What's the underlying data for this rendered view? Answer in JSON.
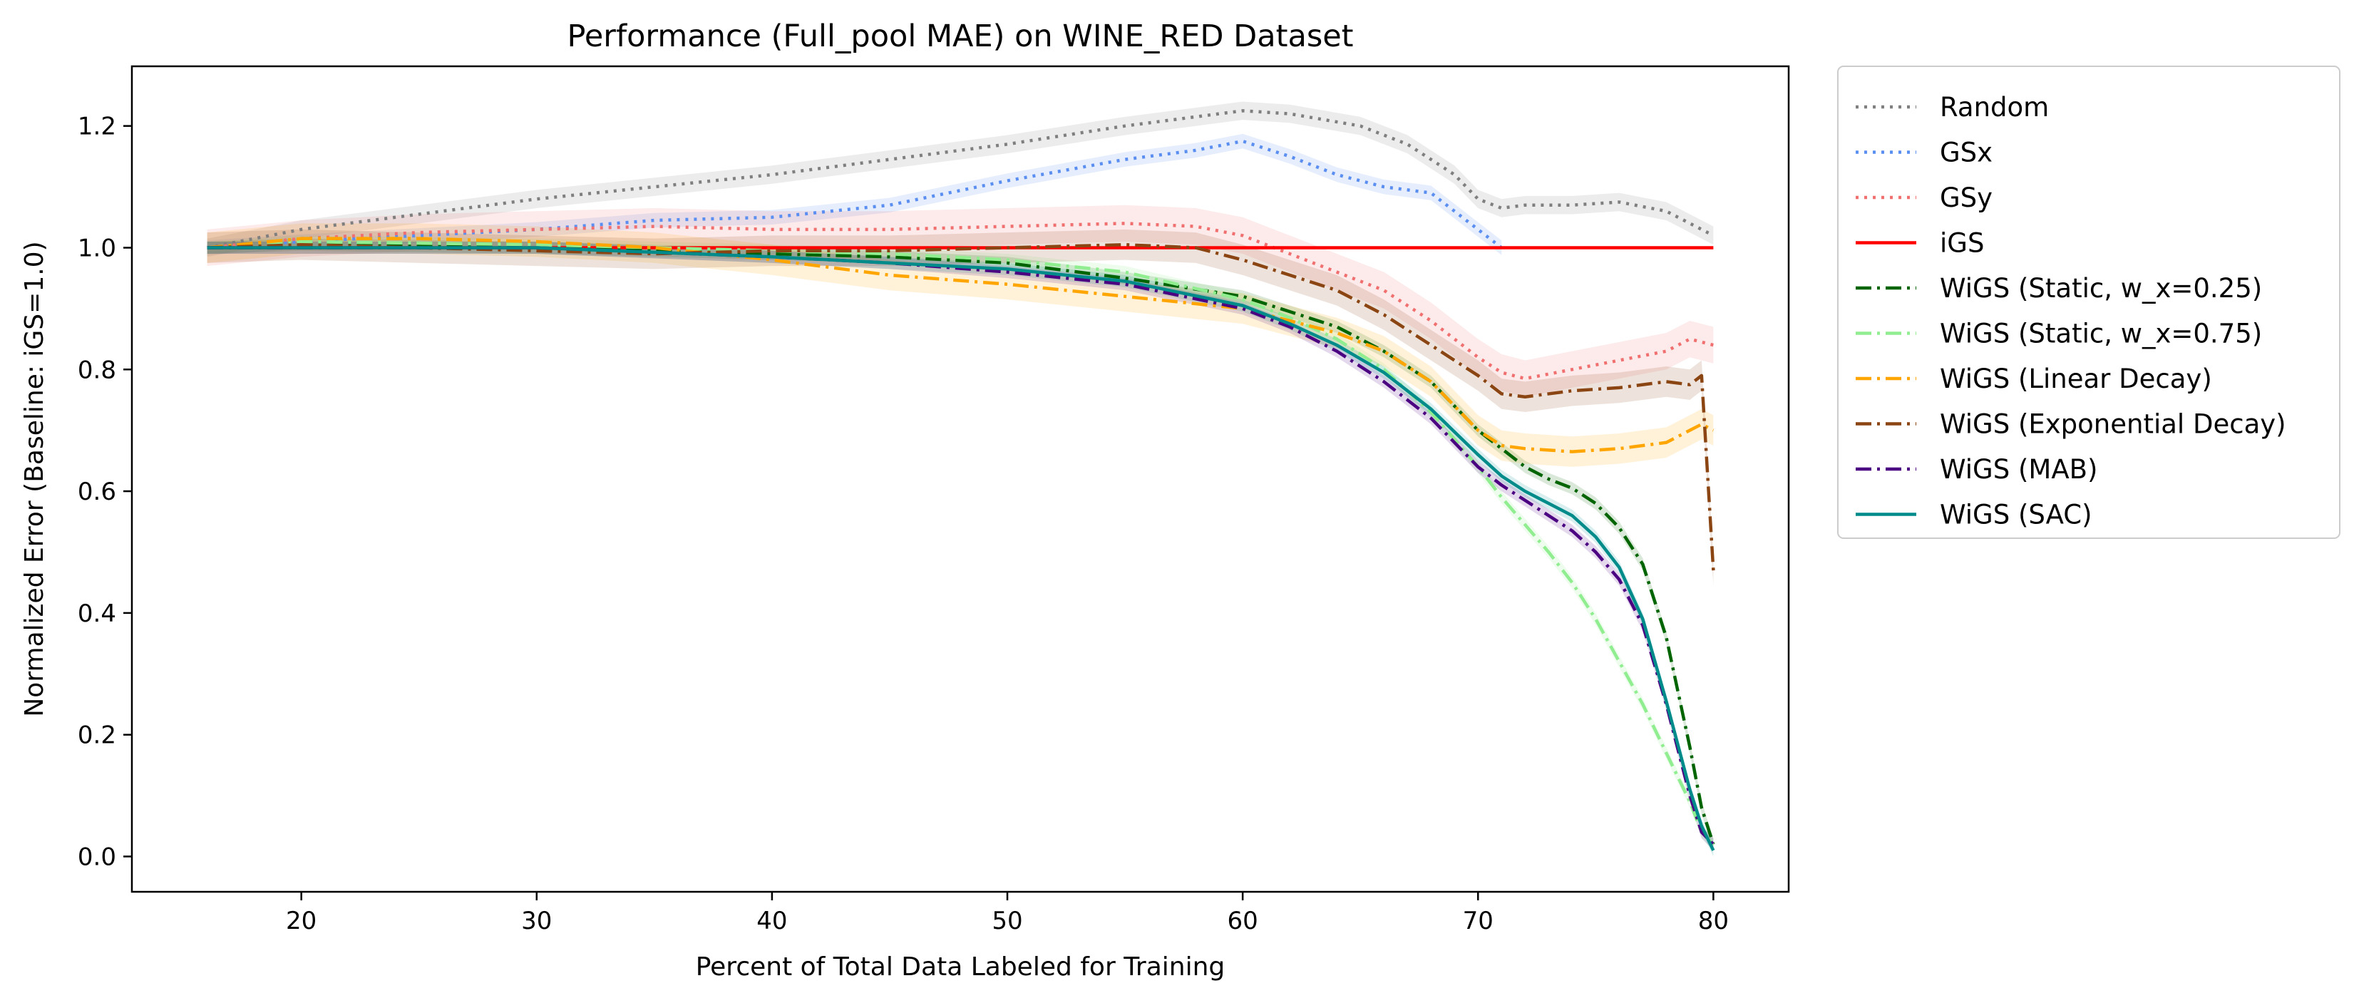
{
  "chart_data": {
    "type": "line",
    "title": "Performance (Full_pool MAE) on WINE_RED Dataset",
    "xlabel": "Percent of Total Data Labeled for Training",
    "ylabel": "Normalized Error (Baseline: iGS=1.0)",
    "xlim": [
      12.8,
      83.2
    ],
    "ylim": [
      -0.058,
      1.298
    ],
    "xticks": [
      20,
      30,
      40,
      50,
      60,
      70,
      80
    ],
    "yticks": [
      0.0,
      0.2,
      0.4,
      0.6,
      0.8,
      1.0,
      1.2
    ],
    "grid": false,
    "legend_position": "outside-right",
    "series": [
      {
        "name": "Random",
        "color": "#7f7f7f",
        "dash": "dotted",
        "x": [
          16,
          20,
          25,
          30,
          35,
          40,
          45,
          50,
          55,
          58,
          60,
          62,
          65,
          67,
          69,
          70,
          71,
          72,
          74,
          76,
          78,
          79,
          80
        ],
        "y": [
          1.0,
          1.03,
          1.055,
          1.08,
          1.1,
          1.12,
          1.145,
          1.17,
          1.2,
          1.215,
          1.225,
          1.22,
          1.2,
          1.17,
          1.12,
          1.08,
          1.065,
          1.07,
          1.07,
          1.075,
          1.06,
          1.04,
          1.02
        ],
        "band": 0.015
      },
      {
        "name": "GSx",
        "color": "#5a8ef0",
        "dash": "dotted",
        "x": [
          16,
          20,
          25,
          30,
          35,
          40,
          45,
          50,
          55,
          58,
          60,
          62,
          64,
          66,
          68,
          69,
          70,
          71
        ],
        "y": [
          1.0,
          1.01,
          1.02,
          1.03,
          1.045,
          1.05,
          1.07,
          1.11,
          1.145,
          1.16,
          1.175,
          1.15,
          1.12,
          1.1,
          1.09,
          1.06,
          1.03,
          1.0
        ],
        "band": 0.012
      },
      {
        "name": "GSy",
        "color": "#f07070",
        "dash": "dotted",
        "x": [
          16,
          20,
          25,
          30,
          35,
          40,
          45,
          50,
          55,
          58,
          60,
          62,
          64,
          66,
          68,
          70,
          71,
          72,
          74,
          76,
          78,
          79,
          80
        ],
        "y": [
          1.0,
          1.015,
          1.025,
          1.03,
          1.035,
          1.03,
          1.03,
          1.035,
          1.04,
          1.035,
          1.02,
          0.99,
          0.96,
          0.93,
          0.88,
          0.82,
          0.795,
          0.785,
          0.8,
          0.815,
          0.83,
          0.85,
          0.84
        ],
        "band": 0.03
      },
      {
        "name": "iGS",
        "color": "#ff0000",
        "dash": "solid",
        "x": [
          16,
          80
        ],
        "y": [
          1.0,
          1.0
        ],
        "band": 0.0
      },
      {
        "name": "WiGS (Static, w_x=0.25)",
        "color": "#006400",
        "dash": "dashdot",
        "x": [
          16,
          20,
          30,
          40,
          45,
          50,
          55,
          60,
          62,
          64,
          66,
          68,
          70,
          71,
          72,
          73,
          74,
          75,
          76,
          77,
          78,
          79,
          79.5,
          80
        ],
        "y": [
          1.0,
          1.005,
          1.0,
          0.99,
          0.985,
          0.975,
          0.95,
          0.92,
          0.895,
          0.87,
          0.83,
          0.78,
          0.7,
          0.67,
          0.64,
          0.62,
          0.605,
          0.58,
          0.54,
          0.48,
          0.36,
          0.18,
          0.08,
          0.02
        ],
        "band": 0.01
      },
      {
        "name": "WiGS (Static, w_x=0.75)",
        "color": "#90ee90",
        "dash": "dashdot",
        "x": [
          16,
          20,
          30,
          40,
          45,
          50,
          55,
          60,
          62,
          64,
          66,
          68,
          70,
          71,
          72,
          73,
          74,
          75,
          76,
          77,
          78,
          79,
          79.5,
          80
        ],
        "y": [
          1.0,
          1.01,
          1.005,
          0.995,
          0.99,
          0.98,
          0.96,
          0.915,
          0.885,
          0.85,
          0.8,
          0.73,
          0.64,
          0.59,
          0.545,
          0.5,
          0.45,
          0.39,
          0.32,
          0.25,
          0.17,
          0.09,
          0.04,
          0.02
        ],
        "band": 0.01
      },
      {
        "name": "WiGS (Linear Decay)",
        "color": "#ffa500",
        "dash": "dashdot",
        "x": [
          16,
          20,
          25,
          30,
          35,
          40,
          45,
          50,
          55,
          60,
          62,
          64,
          66,
          68,
          70,
          71,
          72,
          74,
          76,
          78,
          79,
          79.5,
          80
        ],
        "y": [
          1.0,
          1.015,
          1.015,
          1.01,
          1.0,
          0.98,
          0.955,
          0.94,
          0.92,
          0.9,
          0.88,
          0.86,
          0.83,
          0.78,
          0.7,
          0.675,
          0.67,
          0.665,
          0.67,
          0.68,
          0.7,
          0.71,
          0.7
        ],
        "band": 0.025
      },
      {
        "name": "WiGS (Exponential Decay)",
        "color": "#8b4513",
        "dash": "dashdot",
        "x": [
          16,
          20,
          25,
          30,
          35,
          40,
          45,
          50,
          55,
          58,
          60,
          62,
          64,
          66,
          68,
          70,
          71,
          72,
          74,
          76,
          78,
          79,
          79.5,
          80
        ],
        "y": [
          1.0,
          1.005,
          1.0,
          0.995,
          0.99,
          0.995,
          0.995,
          1.0,
          1.005,
          1.0,
          0.98,
          0.955,
          0.93,
          0.89,
          0.84,
          0.79,
          0.76,
          0.755,
          0.765,
          0.77,
          0.78,
          0.775,
          0.79,
          0.47
        ],
        "band": 0.025
      },
      {
        "name": "WiGS (MAB)",
        "color": "#4b0082",
        "dash": "dashdot",
        "x": [
          16,
          20,
          30,
          40,
          45,
          50,
          55,
          60,
          62,
          64,
          66,
          68,
          70,
          71,
          72,
          73,
          74,
          75,
          76,
          77,
          78,
          79,
          79.5,
          80
        ],
        "y": [
          1.0,
          1.0,
          1.0,
          0.985,
          0.975,
          0.96,
          0.94,
          0.9,
          0.87,
          0.83,
          0.78,
          0.72,
          0.64,
          0.61,
          0.585,
          0.56,
          0.535,
          0.5,
          0.455,
          0.38,
          0.25,
          0.1,
          0.04,
          0.02
        ],
        "band": 0.01
      },
      {
        "name": "WiGS (SAC)",
        "color": "#008b8b",
        "dash": "solid",
        "x": [
          16,
          20,
          30,
          40,
          45,
          50,
          55,
          60,
          62,
          64,
          66,
          68,
          70,
          71,
          72,
          73,
          74,
          75,
          76,
          77,
          78,
          79,
          79.5,
          80
        ],
        "y": [
          1.0,
          1.0,
          1.0,
          0.985,
          0.975,
          0.965,
          0.945,
          0.905,
          0.875,
          0.84,
          0.795,
          0.735,
          0.66,
          0.625,
          0.6,
          0.58,
          0.56,
          0.525,
          0.475,
          0.39,
          0.255,
          0.11,
          0.05,
          0.01
        ],
        "band": 0.01
      }
    ]
  }
}
